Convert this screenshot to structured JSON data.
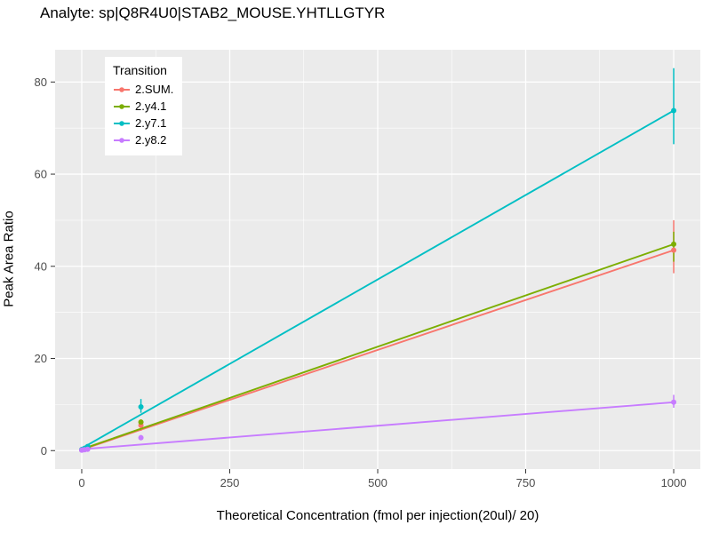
{
  "chart_data": {
    "type": "scatter",
    "title": "Analyte: sp|Q8R4U0|STAB2_MOUSE.YHTLLGTYR",
    "xlabel": "Theoretical Concentration (fmol per injection(20ul)/ 20)",
    "ylabel": "Peak Area Ratio",
    "xlim": [
      -45,
      1045
    ],
    "ylim": [
      -4,
      87
    ],
    "xticks": [
      0,
      250,
      500,
      750,
      1000
    ],
    "yticks": [
      0,
      20,
      40,
      60,
      80
    ],
    "xticks_minor": [
      125,
      375,
      625,
      875
    ],
    "yticks_minor": [
      10,
      30,
      50,
      70
    ],
    "grid": true,
    "panel_background": "#EBEBEB",
    "grid_color": "#FFFFFF",
    "legend_title": "Transition",
    "legend_position": "inside-top-left",
    "series": [
      {
        "name": "2.SUM.",
        "color": "#F8766D",
        "line": [
          {
            "x": 0,
            "y": 0.2
          },
          {
            "x": 1000,
            "y": 43.5
          }
        ],
        "points": [
          {
            "x": 0,
            "y": 0.15
          },
          {
            "x": 1,
            "y": 0.2
          },
          {
            "x": 5,
            "y": 0.3
          },
          {
            "x": 10,
            "y": 0.6
          },
          {
            "x": 100,
            "y": 5.5,
            "err": [
              4.3,
              6.8
            ]
          },
          {
            "x": 1000,
            "y": 43.5,
            "err": [
              38.5,
              50.0
            ]
          }
        ]
      },
      {
        "name": "2.y4.1",
        "color": "#7CAE00",
        "line": [
          {
            "x": 0,
            "y": 0.3
          },
          {
            "x": 1000,
            "y": 44.8
          }
        ],
        "points": [
          {
            "x": 0,
            "y": 0.15
          },
          {
            "x": 1,
            "y": 0.25
          },
          {
            "x": 5,
            "y": 0.35
          },
          {
            "x": 10,
            "y": 0.7
          },
          {
            "x": 100,
            "y": 6.2
          },
          {
            "x": 1000,
            "y": 44.8,
            "err": [
              41.0,
              47.5
            ]
          }
        ]
      },
      {
        "name": "2.y7.1",
        "color": "#00BFC4",
        "line": [
          {
            "x": 0,
            "y": 0.5
          },
          {
            "x": 1000,
            "y": 73.8
          }
        ],
        "points": [
          {
            "x": 0,
            "y": 0.2
          },
          {
            "x": 1,
            "y": 0.3
          },
          {
            "x": 5,
            "y": 0.5
          },
          {
            "x": 10,
            "y": 0.9
          },
          {
            "x": 100,
            "y": 9.5,
            "err": [
              8.2,
              11.2
            ]
          },
          {
            "x": 1000,
            "y": 73.8,
            "err": [
              66.5,
              83.0
            ]
          }
        ]
      },
      {
        "name": "2.y8.2",
        "color": "#C77CFF",
        "line": [
          {
            "x": 0,
            "y": 0.3
          },
          {
            "x": 1000,
            "y": 10.5
          }
        ],
        "points": [
          {
            "x": 0,
            "y": 0.1
          },
          {
            "x": 1,
            "y": 0.15
          },
          {
            "x": 5,
            "y": 0.2
          },
          {
            "x": 10,
            "y": 0.3
          },
          {
            "x": 100,
            "y": 2.8,
            "err": [
              2.3,
              3.4
            ]
          },
          {
            "x": 1000,
            "y": 10.5,
            "err": [
              9.3,
              12.1
            ]
          }
        ]
      }
    ]
  }
}
